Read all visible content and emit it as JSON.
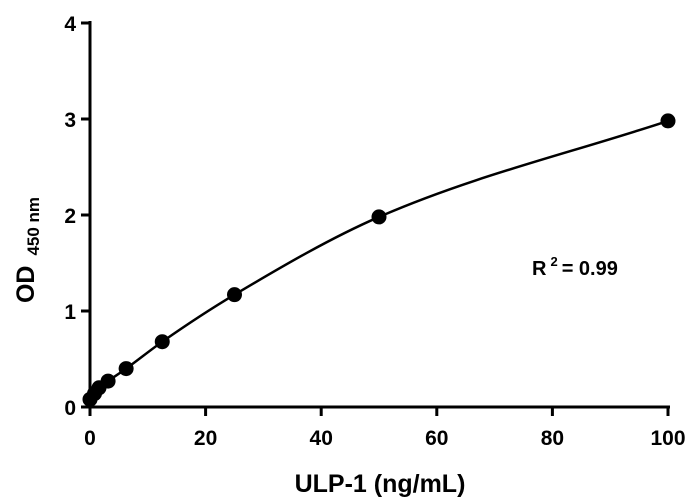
{
  "chart_data": {
    "type": "scatter",
    "title": "",
    "xlabel": "ULP-1 (ng/mL)",
    "ylabel": {
      "main": "OD",
      "subscript": "450 nm"
    },
    "xlim": [
      0,
      100
    ],
    "ylim": [
      0,
      4
    ],
    "x_ticks": [
      "0",
      "20",
      "40",
      "60",
      "80",
      "100"
    ],
    "y_ticks": [
      "0",
      "1",
      "2",
      "3",
      "4"
    ],
    "grid": false,
    "legend": "none",
    "series": [
      {
        "x": [
          0,
          0.78,
          1.56,
          3.13,
          6.25,
          12.5,
          25,
          50,
          100
        ],
        "y": [
          0.08,
          0.14,
          0.2,
          0.27,
          0.4,
          0.68,
          1.17,
          1.98,
          2.98
        ],
        "marker": "circle",
        "color": "#000000"
      }
    ],
    "fit_curve": {
      "color": "#000000"
    },
    "annotations": [
      {
        "text": "R",
        "superscript": "2",
        "suffix": " = 0.99"
      }
    ]
  }
}
